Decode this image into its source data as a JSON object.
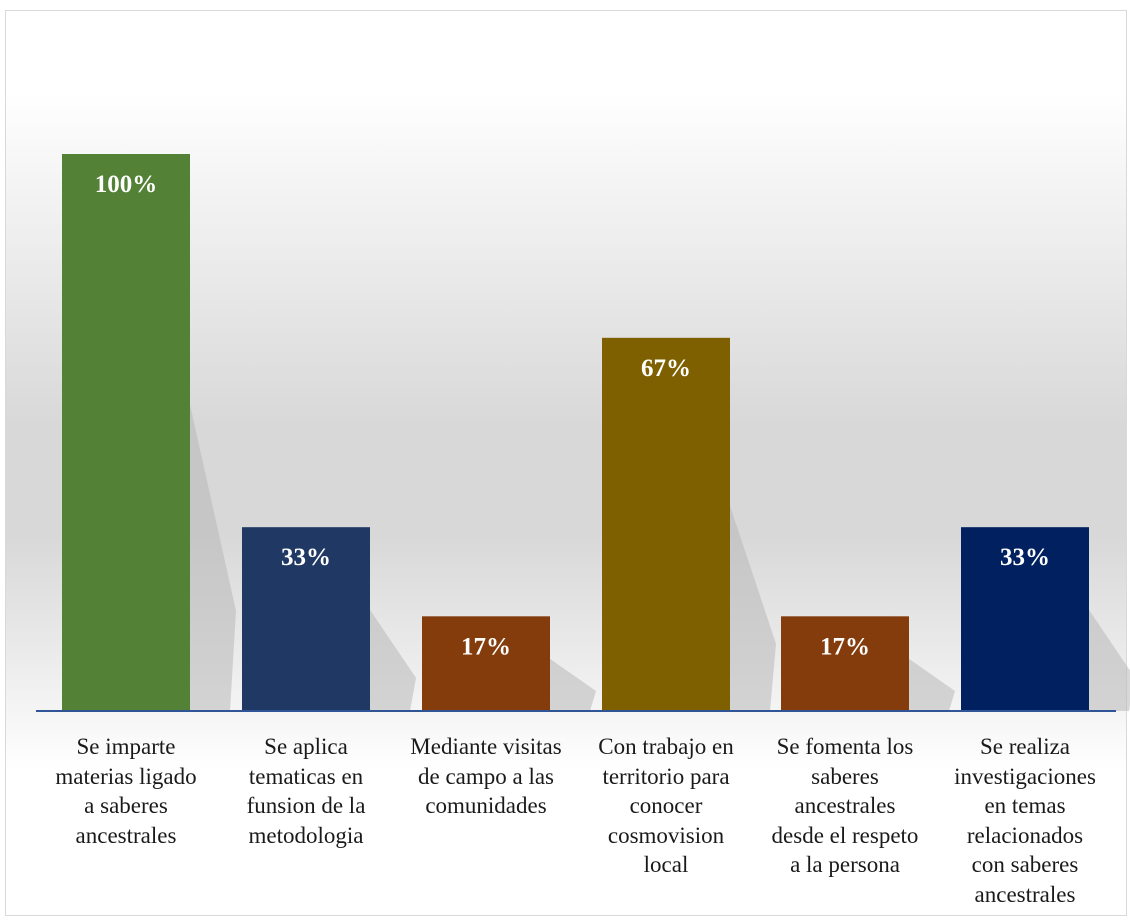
{
  "chart_data": {
    "type": "bar",
    "categories": [
      "Se imparte\nmaterias ligado\na saberes\nancestrales",
      "Se aplica\ntematicas en\nfunsion de la\nmetodologia",
      "Mediante visitas\nde campo a las\ncomunidades",
      "Con trabajo en\nterritorio para\nconocer\ncosmovision\nlocal",
      "Se fomenta los\nsaberes\nancestrales\ndesde el respeto\na la persona",
      "Se realiza\ninvestigaciones\nen temas\nrelacionados\ncon saberes\nancestrales"
    ],
    "values": [
      100,
      33,
      17,
      67,
      17,
      33
    ],
    "data_labels": [
      "100%",
      "33%",
      "17%",
      "67%",
      "17%",
      "33%"
    ],
    "colors": [
      "#538135",
      "#203864",
      "#843C0C",
      "#7F6000",
      "#843C0C",
      "#002060"
    ],
    "ylim": [
      0,
      100
    ],
    "grid": false,
    "legend": "none",
    "axis_color": "#2F5597"
  }
}
